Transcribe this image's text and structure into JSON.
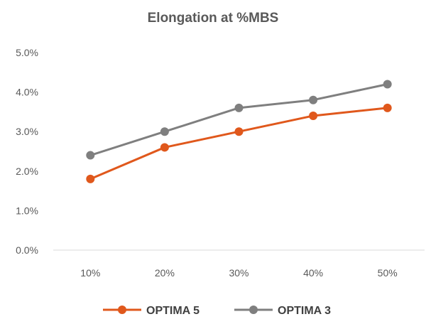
{
  "chart_data": {
    "type": "line",
    "title": "Elongation at %MBS",
    "xlabel": "",
    "ylabel": "",
    "categories": [
      "10%",
      "20%",
      "30%",
      "40%",
      "50%"
    ],
    "ylim": [
      0,
      5
    ],
    "yticks": [
      0,
      1,
      2,
      3,
      4,
      5
    ],
    "ytick_labels": [
      "0.0%",
      "1.0%",
      "2.0%",
      "3.0%",
      "4.0%",
      "5.0%"
    ],
    "grid": false,
    "legend_position": "bottom",
    "series": [
      {
        "name": "OPTIMA 5",
        "color": "#E0581C",
        "values": [
          1.8,
          2.6,
          3.0,
          3.4,
          3.6
        ]
      },
      {
        "name": "OPTIMA 3",
        "color": "#7F7F7F",
        "values": [
          2.4,
          3.0,
          3.6,
          3.8,
          4.2
        ]
      }
    ]
  }
}
